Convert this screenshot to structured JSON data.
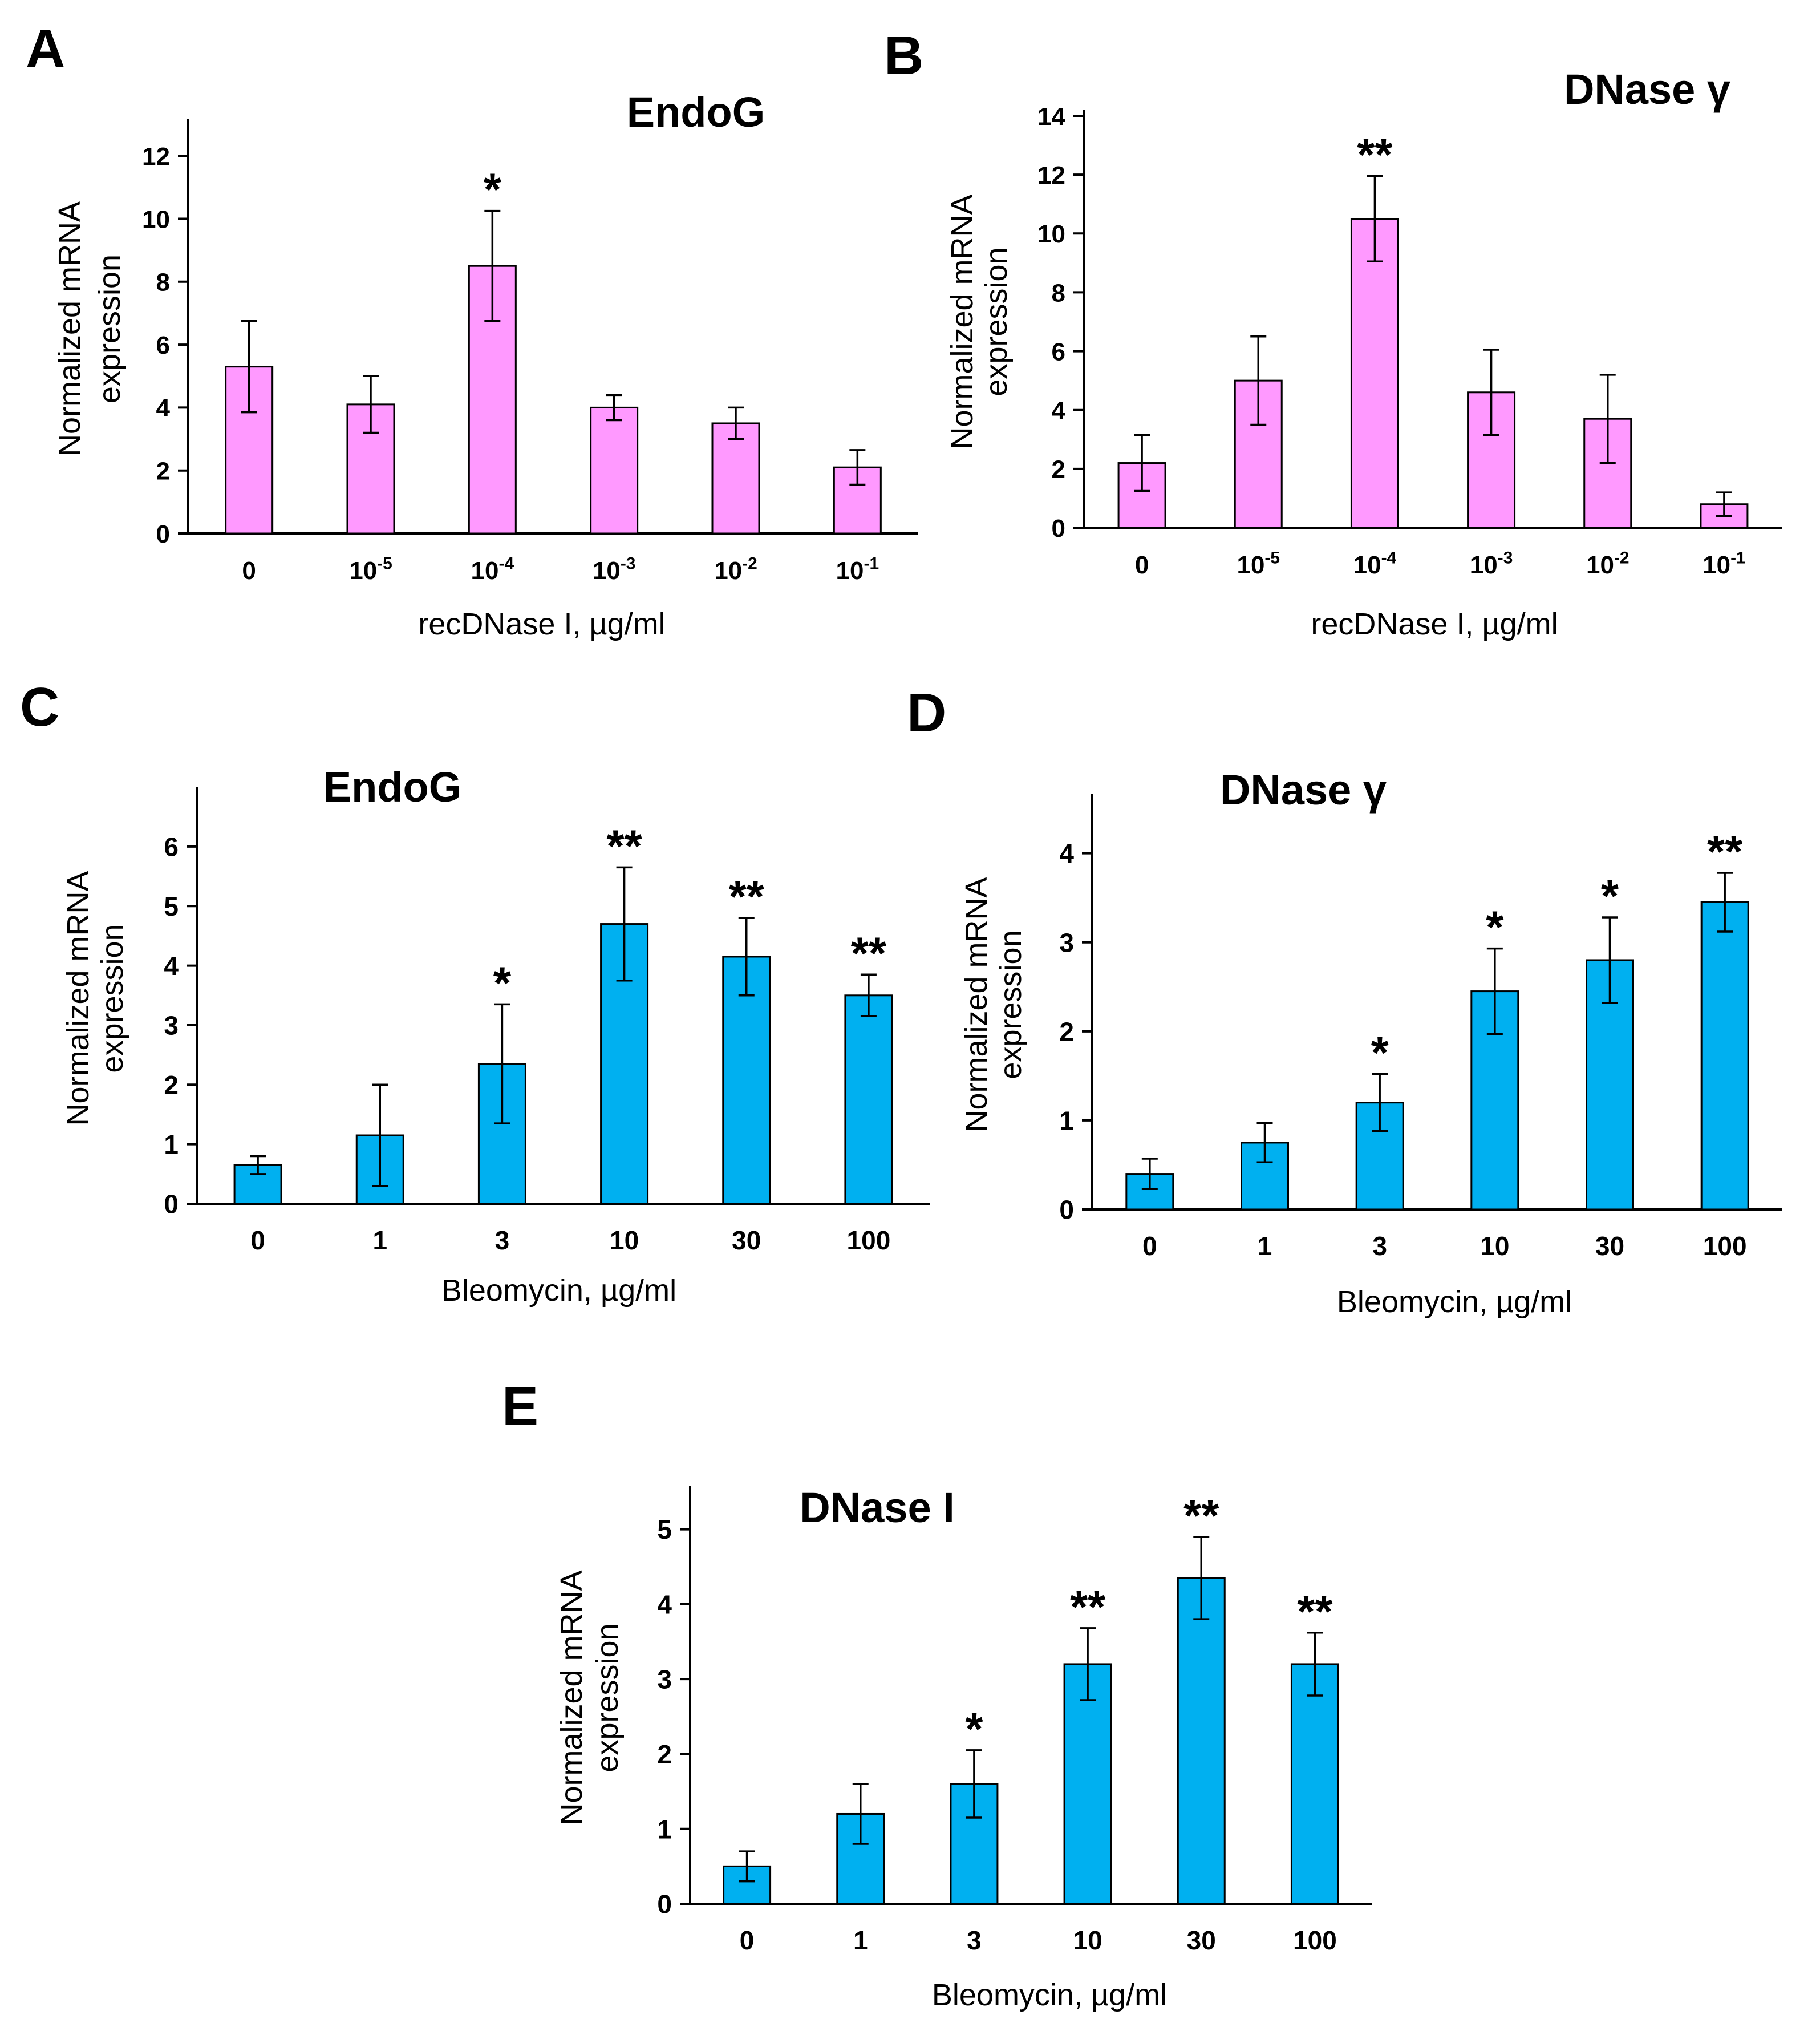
{
  "panels": [
    {
      "letter": "A"
    },
    {
      "letter": "B"
    },
    {
      "letter": "C"
    },
    {
      "letter": "D"
    },
    {
      "letter": "E"
    }
  ],
  "colors": {
    "pink": "#FF99FF",
    "blue": "#00B0F0",
    "axis": "#000000"
  },
  "chart_data": [
    {
      "type": "bar",
      "title": "EndoG",
      "xlabel": "recDNase I, µg/ml",
      "ylabel": [
        "Normalized mRNA",
        "expression"
      ],
      "categories": [
        {
          "base": "0",
          "exp": ""
        },
        {
          "base": "10",
          "exp": "-5"
        },
        {
          "base": "10",
          "exp": "-4"
        },
        {
          "base": "10",
          "exp": "-3"
        },
        {
          "base": "10",
          "exp": "-2"
        },
        {
          "base": "10",
          "exp": "-1"
        }
      ],
      "values": [
        5.3,
        4.1,
        8.5,
        4.0,
        3.5,
        2.1
      ],
      "errors": [
        1.45,
        0.9,
        1.75,
        0.4,
        0.5,
        0.55
      ],
      "significance": [
        "",
        "",
        "*",
        "",
        "",
        ""
      ],
      "ylim": [
        0,
        13
      ],
      "yticks": [
        0,
        2,
        4,
        6,
        8,
        10,
        12
      ],
      "color": "pink"
    },
    {
      "type": "bar",
      "title": "DNase γ",
      "xlabel": "recDNase I, µg/ml",
      "ylabel": [
        "Normalized mRNA",
        "expression"
      ],
      "categories": [
        {
          "base": "0",
          "exp": ""
        },
        {
          "base": "10",
          "exp": "-5"
        },
        {
          "base": "10",
          "exp": "-4"
        },
        {
          "base": "10",
          "exp": "-3"
        },
        {
          "base": "10",
          "exp": "-2"
        },
        {
          "base": "10",
          "exp": "-1"
        }
      ],
      "values": [
        2.2,
        5.0,
        10.5,
        4.6,
        3.7,
        0.8
      ],
      "errors": [
        0.95,
        1.5,
        1.45,
        1.45,
        1.5,
        0.4
      ],
      "significance": [
        "",
        "",
        "**",
        "",
        "",
        ""
      ],
      "ylim": [
        0,
        14
      ],
      "yticks": [
        0,
        2,
        4,
        6,
        8,
        10,
        12,
        14
      ],
      "color": "pink"
    },
    {
      "type": "bar",
      "title": "EndoG",
      "xlabel": "Bleomycin, µg/ml",
      "ylabel": [
        "Normalized mRNA",
        "expression"
      ],
      "categories": [
        {
          "base": "0",
          "exp": ""
        },
        {
          "base": "1",
          "exp": ""
        },
        {
          "base": "3",
          "exp": ""
        },
        {
          "base": "10",
          "exp": ""
        },
        {
          "base": "30",
          "exp": ""
        },
        {
          "base": "100",
          "exp": ""
        }
      ],
      "values": [
        0.65,
        1.15,
        2.35,
        4.7,
        4.15,
        3.5
      ],
      "errors": [
        0.15,
        0.85,
        1.0,
        0.95,
        0.65,
        0.35
      ],
      "significance": [
        "",
        "",
        "*",
        "**",
        "**",
        "**"
      ],
      "ylim": [
        0,
        6.9
      ],
      "yticks": [
        0,
        1,
        2,
        3,
        4,
        5,
        6
      ],
      "color": "blue"
    },
    {
      "type": "bar",
      "title": "DNase γ",
      "xlabel": "Bleomycin, µg/ml",
      "ylabel": [
        "Normalized mRNA",
        "expression"
      ],
      "categories": [
        {
          "base": "0",
          "exp": ""
        },
        {
          "base": "1",
          "exp": ""
        },
        {
          "base": "3",
          "exp": ""
        },
        {
          "base": "10",
          "exp": ""
        },
        {
          "base": "30",
          "exp": ""
        },
        {
          "base": "100",
          "exp": ""
        }
      ],
      "values": [
        0.4,
        0.75,
        1.2,
        2.45,
        2.8,
        3.45
      ],
      "errors": [
        0.17,
        0.22,
        0.32,
        0.48,
        0.48,
        0.33
      ],
      "significance": [
        "",
        "",
        "*",
        "*",
        "*",
        "**"
      ],
      "ylim": [
        0,
        4.6
      ],
      "yticks": [
        0,
        1,
        2,
        3,
        4
      ],
      "color": "blue"
    },
    {
      "type": "bar",
      "title": "DNase I",
      "xlabel": "Bleomycin, µg/ml",
      "ylabel": [
        "Normalized mRNA",
        "expression"
      ],
      "categories": [
        {
          "base": "0",
          "exp": ""
        },
        {
          "base": "1",
          "exp": ""
        },
        {
          "base": "3",
          "exp": ""
        },
        {
          "base": "10",
          "exp": ""
        },
        {
          "base": "30",
          "exp": ""
        },
        {
          "base": "100",
          "exp": ""
        }
      ],
      "values": [
        0.5,
        1.2,
        1.6,
        3.2,
        4.35,
        3.2
      ],
      "errors": [
        0.2,
        0.4,
        0.45,
        0.48,
        0.55,
        0.42
      ],
      "significance": [
        "",
        "",
        "*",
        "**",
        "**",
        "**"
      ],
      "ylim": [
        0,
        5.5
      ],
      "yticks": [
        0,
        1,
        2,
        3,
        4,
        5
      ],
      "color": "blue"
    }
  ]
}
